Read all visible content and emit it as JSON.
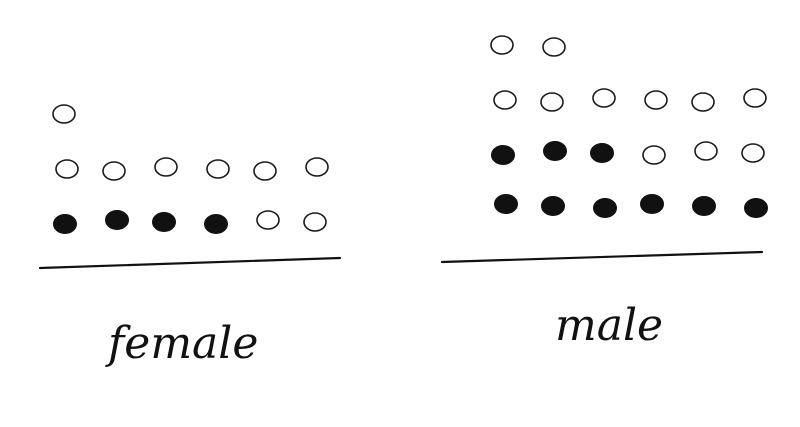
{
  "groups": [
    {
      "id": "female",
      "label": "female",
      "rows": [
        [
          "open"
        ],
        [
          "open",
          "open",
          "open",
          "open",
          "open",
          "open"
        ],
        [
          "filled",
          "filled",
          "filled",
          "filled",
          "open",
          "open"
        ]
      ]
    },
    {
      "id": "male",
      "label": "male",
      "rows": [
        [
          "open",
          "open"
        ],
        [
          "open",
          "open",
          "open",
          "open",
          "open",
          "open"
        ],
        [
          "filled",
          "filled",
          "filled",
          "open",
          "open",
          "open"
        ],
        [
          "filled",
          "filled",
          "filled",
          "filled",
          "filled",
          "filled"
        ]
      ]
    }
  ],
  "colors": {
    "ink": "#111111",
    "paper": "#ffffff"
  }
}
